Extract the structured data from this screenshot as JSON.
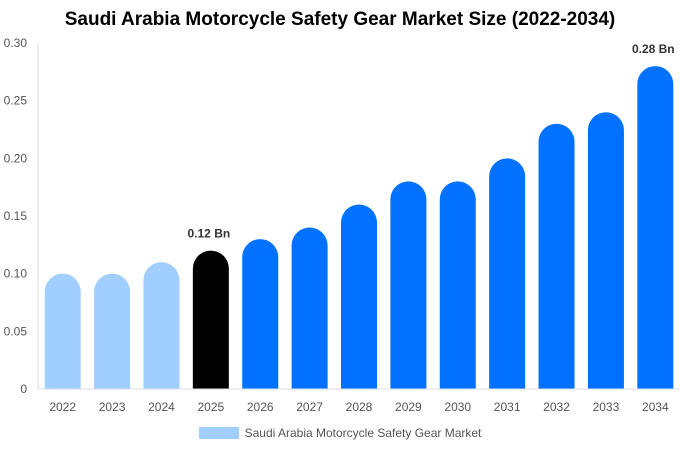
{
  "chart_data": {
    "type": "bar",
    "title": "Saudi Arabia Motorcycle Safety Gear Market Size (2022-2034)",
    "xlabel": "",
    "ylabel": "",
    "categories": [
      "2022",
      "2023",
      "2024",
      "2025",
      "2026",
      "2027",
      "2028",
      "2029",
      "2030",
      "2031",
      "2032",
      "2033",
      "2034"
    ],
    "series": [
      {
        "name": "Saudi Arabia Motorcycle Safety Gear Market",
        "values": [
          0.1,
          0.1,
          0.11,
          0.12,
          0.13,
          0.14,
          0.16,
          0.18,
          0.18,
          0.2,
          0.23,
          0.24,
          0.28
        ]
      }
    ],
    "ylim": [
      0,
      0.3
    ],
    "yticks": [
      "0",
      "0.05",
      "0.10",
      "0.15",
      "0.20",
      "0.25",
      "0.30"
    ],
    "ytick_values": [
      0,
      0.05,
      0.1,
      0.15,
      0.2,
      0.25,
      0.3
    ],
    "annotations": [
      {
        "category": "2025",
        "text": "0.12 Bn"
      },
      {
        "category": "2034",
        "text": "0.28 Bn"
      }
    ],
    "colors": {
      "historical": "#a0cfff",
      "current": "#000000",
      "forecast": "#0072ff",
      "axis_text": "#555555",
      "grid": "#e6e6e6"
    },
    "bar_color_groups": [
      "historical",
      "historical",
      "historical",
      "current",
      "forecast",
      "forecast",
      "forecast",
      "forecast",
      "forecast",
      "forecast",
      "forecast",
      "forecast",
      "forecast"
    ],
    "grid": false,
    "legend_position": "bottom"
  }
}
